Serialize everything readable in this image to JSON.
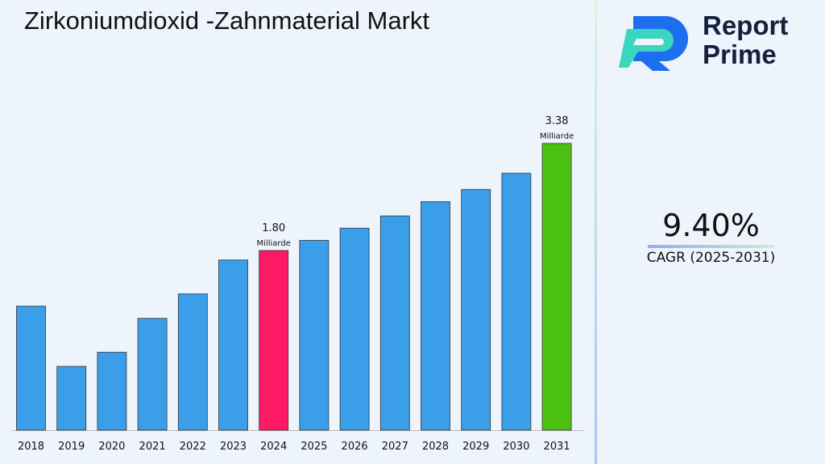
{
  "title": "Zirkoniumdioxid -Zahnmaterial Markt",
  "logo": {
    "line1": "Report",
    "line2": "Prime"
  },
  "cagr": {
    "value": "9.40%",
    "label": "CAGR (2025-2031)"
  },
  "chart_data": {
    "type": "bar",
    "title": "Zirkoniumdioxid -Zahnmaterial Markt",
    "categories": [
      "2018",
      "2019",
      "2020",
      "2021",
      "2022",
      "2023",
      "2024",
      "2025",
      "2026",
      "2027",
      "2028",
      "2029",
      "2030",
      "2031"
    ],
    "values": [
      0.98,
      0.09,
      0.3,
      0.8,
      1.16,
      1.66,
      1.8,
      1.95,
      2.13,
      2.31,
      2.52,
      2.7,
      2.94,
      3.38
    ],
    "ylim": [
      -0.85,
      3.6
    ],
    "grid": false,
    "colors": {
      "default": "#3a9fe8",
      "highlight_2024": "#ff1a66",
      "highlight_2031": "#4cc010"
    },
    "annotations": [
      {
        "category": "2024",
        "value": "1.80",
        "unit": "Milliarde"
      },
      {
        "category": "2031",
        "value": "3.38",
        "unit": "Milliarde"
      }
    ]
  }
}
